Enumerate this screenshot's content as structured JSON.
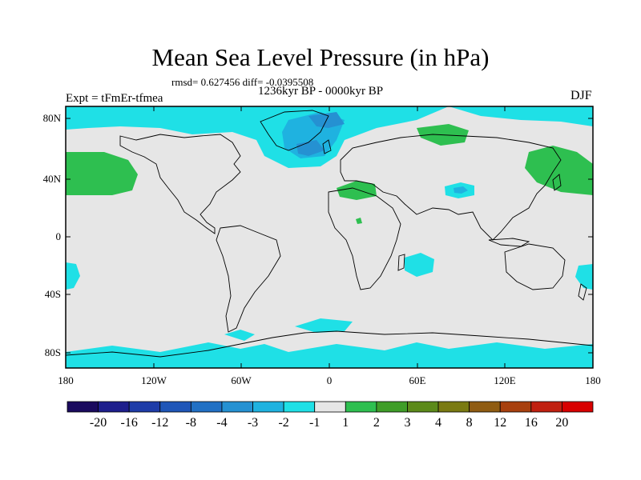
{
  "title": "Mean Sea Level Pressure (in hPa)",
  "stats_line": "rmsd= 0.627456 diff= -0.0395508",
  "period": "1236kyr BP - 0000kyr BP",
  "experiment": "Expt = tFmEr-tfmea",
  "season": "DJF",
  "lat_labels": [
    "80N",
    "40N",
    "0",
    "40S",
    "80S"
  ],
  "lon_labels": [
    "180",
    "120W",
    "60W",
    "0",
    "60E",
    "120E",
    "180"
  ],
  "colorbar": {
    "labels": [
      "-20",
      "-16",
      "-12",
      "-8",
      "-4",
      "-3",
      "-2",
      "-1",
      "1",
      "2",
      "3",
      "4",
      "8",
      "12",
      "16",
      "20"
    ],
    "colors": [
      "#1a0a5e",
      "#1d1e8c",
      "#1e3ca8",
      "#1f56b8",
      "#2170c4",
      "#2591d2",
      "#1fb2e0",
      "#1fe0e6",
      "#e6e6e6",
      "#2ebf50",
      "#3f9d28",
      "#5c8a1a",
      "#7a7a12",
      "#8f5c12",
      "#a8400e",
      "#c02010",
      "#d80000"
    ]
  },
  "colors": {
    "background": "#e6e6e6",
    "negative_light": "#1fe0e6",
    "negative_mid": "#1fb2e0",
    "negative_dark": "#2591d2",
    "positive": "#2ebf50"
  }
}
